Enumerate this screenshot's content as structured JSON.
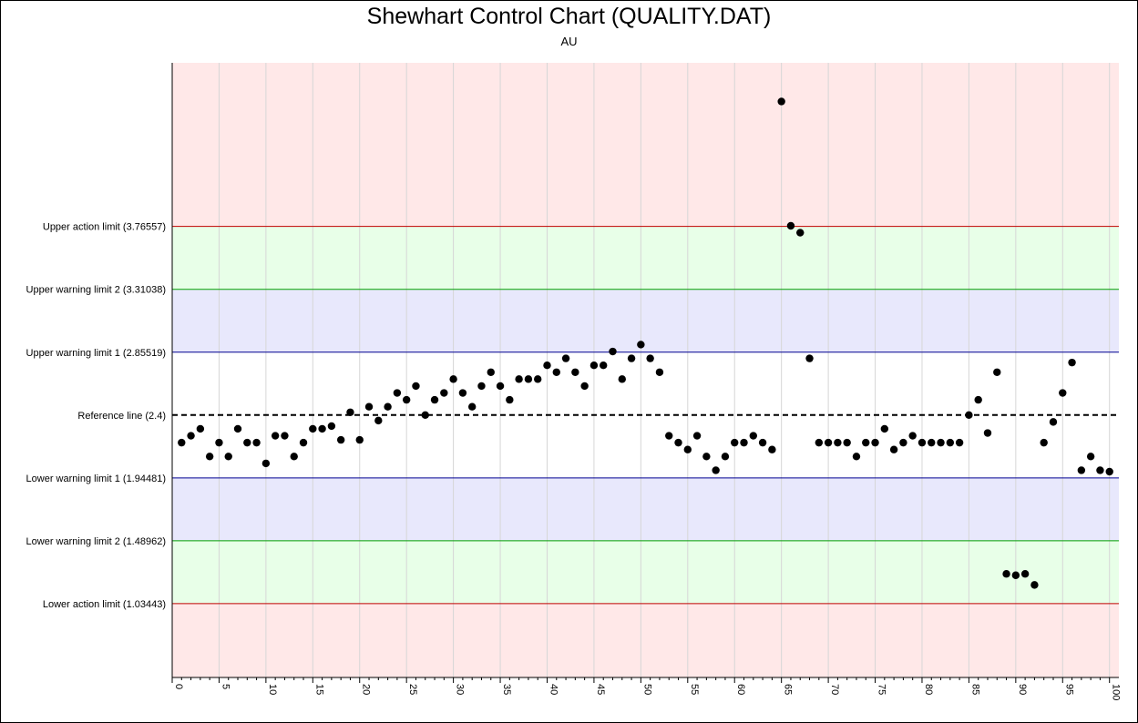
{
  "chart_data": {
    "type": "scatter",
    "title": "Shewhart Control Chart (QUALITY.DAT)",
    "subtitle": "AU",
    "xlabel": "",
    "ylabel": "",
    "xlim": [
      0,
      101
    ],
    "ylim": [
      0.5,
      4.95
    ],
    "x_ticks": [
      0,
      5,
      10,
      15,
      20,
      25,
      30,
      35,
      40,
      45,
      50,
      55,
      60,
      65,
      70,
      75,
      80,
      85,
      90,
      95,
      100
    ],
    "grid": true,
    "limit_lines": [
      {
        "label": "Upper action limit (3.76557)",
        "value": 3.76557,
        "color": "#c00000",
        "style": "solid"
      },
      {
        "label": "Upper warning limit 2 (3.31038)",
        "value": 3.31038,
        "color": "#00a000",
        "style": "solid"
      },
      {
        "label": "Upper warning limit 1 (2.85519)",
        "value": 2.85519,
        "color": "#000090",
        "style": "solid"
      },
      {
        "label": "Reference line (2.4)",
        "value": 2.4,
        "color": "#000000",
        "style": "dashed"
      },
      {
        "label": "Lower warning limit 1 (1.94481)",
        "value": 1.94481,
        "color": "#000090",
        "style": "solid"
      },
      {
        "label": "Lower warning limit 2 (1.48962)",
        "value": 1.48962,
        "color": "#00a000",
        "style": "solid"
      },
      {
        "label": "Lower action limit (1.03443)",
        "value": 1.03443,
        "color": "#c00000",
        "style": "solid"
      }
    ],
    "zones": [
      {
        "from": 3.76557,
        "to": 4.95,
        "color": "#ffe8e8"
      },
      {
        "from": 3.31038,
        "to": 3.76557,
        "color": "#e8ffe8"
      },
      {
        "from": 2.85519,
        "to": 3.31038,
        "color": "#e8e8fc"
      },
      {
        "from": 1.94481,
        "to": 2.85519,
        "color": "#ffffff"
      },
      {
        "from": 1.48962,
        "to": 1.94481,
        "color": "#e8e8fc"
      },
      {
        "from": 1.03443,
        "to": 1.48962,
        "color": "#e8ffe8"
      },
      {
        "from": 0.5,
        "to": 1.03443,
        "color": "#ffe8e8"
      }
    ],
    "series": [
      {
        "name": "",
        "color": "#000000",
        "x": [
          1,
          2,
          3,
          4,
          5,
          6,
          7,
          8,
          9,
          10,
          11,
          12,
          13,
          14,
          15,
          16,
          17,
          18,
          19,
          20,
          21,
          22,
          23,
          24,
          25,
          26,
          27,
          28,
          29,
          30,
          31,
          32,
          33,
          34,
          35,
          36,
          37,
          38,
          39,
          40,
          41,
          42,
          43,
          44,
          45,
          46,
          47,
          48,
          49,
          50,
          51,
          52,
          53,
          54,
          55,
          56,
          57,
          58,
          59,
          60,
          61,
          62,
          63,
          64,
          65,
          66,
          67,
          68,
          69,
          70,
          71,
          72,
          73,
          74,
          75,
          76,
          77,
          78,
          79,
          80,
          81,
          82,
          83,
          84,
          85,
          86,
          87,
          88,
          89,
          90,
          91,
          92,
          93,
          94,
          95,
          96,
          97,
          98,
          99,
          100
        ],
        "y": [
          2.2,
          2.25,
          2.3,
          2.1,
          2.2,
          2.1,
          2.3,
          2.2,
          2.2,
          2.05,
          2.25,
          2.25,
          2.1,
          2.2,
          2.3,
          2.3,
          2.32,
          2.22,
          2.42,
          2.22,
          2.46,
          2.36,
          2.46,
          2.56,
          2.51,
          2.61,
          2.4,
          2.51,
          2.56,
          2.66,
          2.56,
          2.46,
          2.61,
          2.71,
          2.61,
          2.51,
          2.66,
          2.66,
          2.66,
          2.76,
          2.71,
          2.81,
          2.71,
          2.61,
          2.76,
          2.76,
          2.86,
          2.66,
          2.81,
          2.91,
          2.81,
          2.71,
          2.25,
          2.2,
          2.15,
          2.25,
          2.1,
          2.0,
          2.1,
          2.2,
          2.2,
          2.25,
          2.2,
          2.15,
          4.67,
          3.77,
          3.72,
          2.81,
          2.2,
          2.2,
          2.2,
          2.2,
          2.1,
          2.2,
          2.2,
          2.3,
          2.15,
          2.2,
          2.25,
          2.2,
          2.2,
          2.2,
          2.2,
          2.2,
          2.4,
          2.51,
          2.27,
          2.71,
          1.25,
          1.24,
          1.25,
          1.17,
          2.2,
          2.35,
          2.56,
          2.78,
          2.0,
          2.1,
          2.0,
          1.99
        ]
      }
    ]
  }
}
